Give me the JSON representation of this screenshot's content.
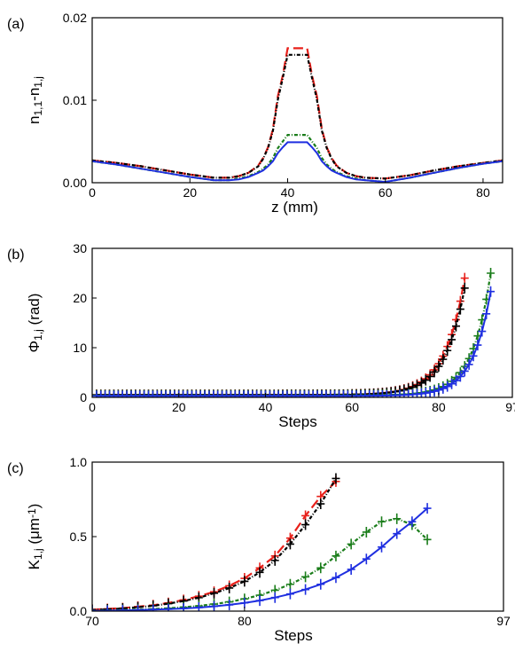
{
  "colors": {
    "red": "#e8201a",
    "black": "#000000",
    "green": "#1a7d1a",
    "blue": "#1f2fe0"
  },
  "chart_data": [
    {
      "type": "line",
      "panel_label": "(a)",
      "xlabel": "z (mm)",
      "ylabel_parts": [
        "n",
        "1,1",
        "-n",
        "1,j"
      ],
      "xlim": [
        0,
        84
      ],
      "ylim": [
        0,
        0.02
      ],
      "xticks": [
        0,
        20,
        40,
        60,
        80
      ],
      "xtick_labels": [
        "0",
        "20",
        "40",
        "60",
        "80"
      ],
      "yticks": [
        0,
        0.01,
        0.02
      ],
      "ytick_labels": [
        "0.00",
        "0.01",
        "0.02"
      ],
      "series": [
        {
          "color": "red",
          "style": "longdash",
          "x": [
            0,
            5,
            10,
            15,
            20,
            25,
            28,
            30,
            32,
            34,
            35,
            36,
            37,
            38,
            39,
            40,
            44,
            45,
            46,
            47,
            48,
            49,
            50,
            52,
            54,
            56,
            60,
            65,
            70,
            75,
            80,
            84
          ],
          "y": [
            0.0027,
            0.0024,
            0.002,
            0.0015,
            0.001,
            0.0006,
            0.0006,
            0.0008,
            0.0012,
            0.0021,
            0.003,
            0.0043,
            0.0065,
            0.0105,
            0.013,
            0.0163,
            0.0163,
            0.013,
            0.0105,
            0.0065,
            0.0043,
            0.003,
            0.0021,
            0.0012,
            0.0008,
            0.0006,
            0.0005,
            0.0009,
            0.0015,
            0.002,
            0.0024,
            0.0027
          ]
        },
        {
          "color": "black",
          "style": "dashdot",
          "x": [
            0,
            5,
            10,
            15,
            20,
            25,
            28,
            30,
            32,
            34,
            35,
            36,
            37,
            38,
            39,
            40,
            44,
            45,
            46,
            47,
            48,
            49,
            50,
            52,
            54,
            56,
            60,
            65,
            70,
            75,
            80,
            84
          ],
          "y": [
            0.0027,
            0.0024,
            0.002,
            0.0015,
            0.001,
            0.0006,
            0.0006,
            0.0008,
            0.0012,
            0.002,
            0.0029,
            0.0042,
            0.0063,
            0.0101,
            0.0127,
            0.0155,
            0.0155,
            0.0127,
            0.0101,
            0.0063,
            0.0042,
            0.0029,
            0.002,
            0.0012,
            0.0008,
            0.0006,
            0.0005,
            0.0009,
            0.0015,
            0.002,
            0.0024,
            0.0027
          ]
        },
        {
          "color": "green",
          "style": "dashdot",
          "x": [
            0,
            5,
            10,
            15,
            20,
            25,
            28,
            30,
            32,
            34,
            35,
            36,
            37,
            38,
            39,
            40,
            44,
            45,
            46,
            47,
            48,
            49,
            50,
            52,
            54,
            56,
            60,
            65,
            70,
            75,
            80,
            84
          ],
          "y": [
            0.0026,
            0.0022,
            0.0017,
            0.0012,
            0.0007,
            0.0003,
            0.0003,
            0.0005,
            0.0008,
            0.0013,
            0.0017,
            0.0022,
            0.003,
            0.0042,
            0.005,
            0.0058,
            0.0058,
            0.005,
            0.0042,
            0.003,
            0.0022,
            0.0017,
            0.0013,
            0.0008,
            0.0005,
            0.0003,
            0.0001,
            0.0006,
            0.0012,
            0.0018,
            0.0023,
            0.0026
          ]
        },
        {
          "color": "blue",
          "style": "solid",
          "x": [
            0,
            5,
            10,
            15,
            20,
            25,
            28,
            30,
            32,
            34,
            35,
            36,
            37,
            38,
            39,
            40,
            44,
            45,
            46,
            47,
            48,
            49,
            50,
            52,
            54,
            56,
            60,
            65,
            70,
            75,
            80,
            84
          ],
          "y": [
            0.0026,
            0.0022,
            0.0017,
            0.0012,
            0.0007,
            0.0003,
            0.0003,
            0.0004,
            0.0007,
            0.0012,
            0.0015,
            0.002,
            0.0026,
            0.0036,
            0.0043,
            0.0049,
            0.0049,
            0.0043,
            0.0036,
            0.0026,
            0.002,
            0.0015,
            0.0012,
            0.0007,
            0.0004,
            0.0003,
            0.0001,
            0.0006,
            0.0012,
            0.0018,
            0.0023,
            0.0026
          ]
        }
      ]
    },
    {
      "type": "line",
      "panel_label": "(b)",
      "xlabel": "Steps",
      "ylabel_parts": [
        "Φ",
        "1,j",
        " (rad)",
        ""
      ],
      "xlim": [
        0,
        97
      ],
      "ylim": [
        0,
        30
      ],
      "xticks": [
        0,
        20,
        40,
        60,
        80,
        97
      ],
      "xtick_labels": [
        "0",
        "20",
        "40",
        "60",
        "80",
        "97"
      ],
      "yticks": [
        0,
        10,
        20,
        30
      ],
      "ytick_labels": [
        "0",
        "10",
        "20",
        "30"
      ],
      "series": [
        {
          "color": "red",
          "style": "longdash",
          "markers": true,
          "x_start": 1,
          "x_end": 86,
          "flat": 0.5,
          "end_value": 24.0,
          "rate": 0.22
        },
        {
          "color": "black",
          "style": "dashdot",
          "markers": true,
          "x_start": 1,
          "x_end": 86,
          "flat": 0.5,
          "end_value": 22.0,
          "rate": 0.22
        },
        {
          "color": "green",
          "style": "dashdot",
          "markers": true,
          "x_start": 1,
          "x_end": 92,
          "flat": 0.4,
          "end_value": 25.0,
          "rate": 0.24
        },
        {
          "color": "blue",
          "style": "solid",
          "markers": true,
          "x_start": 1,
          "x_end": 92,
          "flat": 0.3,
          "end_value": 21.3,
          "rate": 0.24
        }
      ]
    },
    {
      "type": "line",
      "panel_label": "(c)",
      "xlabel": "Steps",
      "ylabel_parts": [
        "K",
        "1,j",
        " (μm",
        "-1",
        ")"
      ],
      "xlim": [
        70,
        97
      ],
      "ylim": [
        0,
        1.0
      ],
      "xticks": [
        70,
        80,
        97
      ],
      "xtick_labels": [
        "70",
        "80",
        "97"
      ],
      "yticks": [
        0,
        0.5,
        1.0
      ],
      "ytick_labels": [
        "0.0",
        "0.5",
        "1.0"
      ],
      "series": [
        {
          "color": "red",
          "style": "longdash",
          "markers": true,
          "x": [
            70,
            71,
            72,
            73,
            74,
            75,
            76,
            77,
            78,
            79,
            80,
            81,
            82,
            83,
            84,
            85,
            86
          ],
          "y": [
            0.01,
            0.015,
            0.02,
            0.03,
            0.04,
            0.055,
            0.075,
            0.1,
            0.13,
            0.17,
            0.22,
            0.29,
            0.37,
            0.49,
            0.64,
            0.77,
            0.87
          ]
        },
        {
          "color": "black",
          "style": "dashdot",
          "markers": true,
          "x": [
            70,
            71,
            72,
            73,
            74,
            75,
            76,
            77,
            78,
            79,
            80,
            81,
            82,
            83,
            84,
            85,
            86
          ],
          "y": [
            0.008,
            0.012,
            0.018,
            0.026,
            0.036,
            0.05,
            0.068,
            0.09,
            0.12,
            0.155,
            0.2,
            0.26,
            0.34,
            0.45,
            0.58,
            0.72,
            0.89
          ]
        },
        {
          "color": "green",
          "style": "dashdot",
          "markers": true,
          "x": [
            70,
            71,
            72,
            73,
            74,
            75,
            76,
            77,
            78,
            79,
            80,
            81,
            82,
            83,
            84,
            85,
            86,
            87,
            88,
            89,
            90,
            91,
            92
          ],
          "y": [
            0.003,
            0.005,
            0.007,
            0.01,
            0.014,
            0.019,
            0.026,
            0.035,
            0.047,
            0.062,
            0.082,
            0.107,
            0.14,
            0.18,
            0.23,
            0.29,
            0.37,
            0.45,
            0.53,
            0.6,
            0.62,
            0.58,
            0.48
          ]
        },
        {
          "color": "blue",
          "style": "solid",
          "markers": true,
          "x": [
            70,
            71,
            72,
            73,
            74,
            75,
            76,
            77,
            78,
            79,
            80,
            81,
            82,
            83,
            84,
            85,
            86,
            87,
            88,
            89,
            90,
            91,
            92
          ],
          "y": [
            0.002,
            0.003,
            0.005,
            0.007,
            0.01,
            0.013,
            0.018,
            0.024,
            0.032,
            0.042,
            0.055,
            0.071,
            0.091,
            0.115,
            0.145,
            0.18,
            0.225,
            0.28,
            0.35,
            0.43,
            0.52,
            0.6,
            0.69
          ]
        }
      ]
    }
  ]
}
